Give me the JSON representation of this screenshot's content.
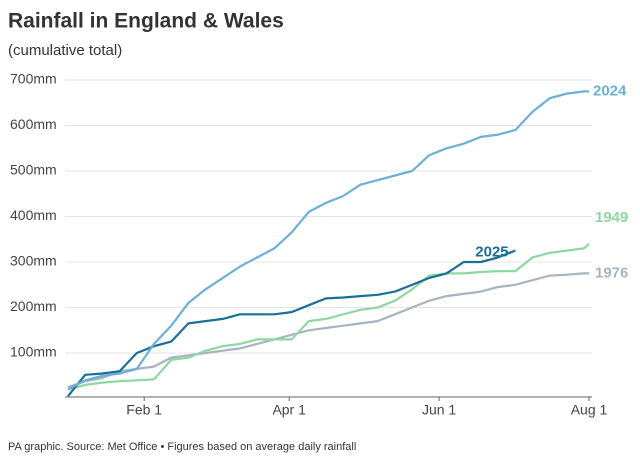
{
  "chart_data": {
    "type": "line",
    "title": "Rainfall in England & Wales",
    "subtitle": "(cumulative total)",
    "footer": "PA graphic. Source: Met Office • Figures based on average daily rainfall",
    "x": [
      0,
      7,
      14,
      21,
      28,
      35,
      42,
      49,
      56,
      63,
      70,
      77,
      84,
      91,
      98,
      105,
      112,
      119,
      126,
      133,
      140,
      147,
      154,
      161,
      168,
      175,
      182,
      189,
      196,
      203,
      210,
      212
    ],
    "xlim": [
      0,
      212
    ],
    "xticks": [
      {
        "value": 31,
        "label": "Feb 1"
      },
      {
        "value": 90,
        "label": "Apr 1"
      },
      {
        "value": 151,
        "label": "Jun 1"
      },
      {
        "value": 212,
        "label": "Aug 1"
      }
    ],
    "ylim": [
      0,
      700
    ],
    "yticks": [
      {
        "value": 100,
        "label": "100mm"
      },
      {
        "value": 200,
        "label": "200mm"
      },
      {
        "value": 300,
        "label": "300mm"
      },
      {
        "value": 400,
        "label": "400mm"
      },
      {
        "value": 500,
        "label": "500mm"
      },
      {
        "value": 600,
        "label": "600mm"
      },
      {
        "value": 700,
        "label": "700mm"
      }
    ],
    "grid": true,
    "series": [
      {
        "name": "2024",
        "color": "#6ab0d8",
        "values": [
          20,
          40,
          50,
          55,
          65,
          120,
          160,
          210,
          240,
          265,
          290,
          310,
          330,
          365,
          410,
          430,
          445,
          470,
          480,
          490,
          500,
          535,
          550,
          560,
          575,
          580,
          590,
          630,
          660,
          670,
          675,
          675
        ]
      },
      {
        "name": "2025",
        "color": "#1a6f96",
        "values": [
          5,
          52,
          55,
          60,
          100,
          115,
          125,
          165,
          170,
          175,
          185,
          185,
          185,
          190,
          205,
          220,
          222,
          225,
          228,
          235,
          250,
          265,
          275,
          300,
          300,
          310,
          325,
          null,
          null,
          null,
          null,
          null
        ]
      },
      {
        "name": "1949",
        "color": "#8fd7a0",
        "values": [
          20,
          30,
          35,
          38,
          40,
          42,
          85,
          90,
          105,
          115,
          120,
          130,
          130,
          130,
          170,
          175,
          185,
          195,
          200,
          215,
          240,
          270,
          275,
          275,
          278,
          280,
          280,
          310,
          320,
          325,
          330,
          340
        ]
      },
      {
        "name": "1976",
        "color": "#a9b3c2",
        "values": [
          25,
          38,
          45,
          60,
          65,
          70,
          90,
          95,
          100,
          105,
          110,
          120,
          130,
          140,
          150,
          155,
          160,
          165,
          170,
          185,
          200,
          215,
          225,
          230,
          235,
          245,
          250,
          260,
          270,
          272,
          275,
          275
        ]
      }
    ]
  }
}
